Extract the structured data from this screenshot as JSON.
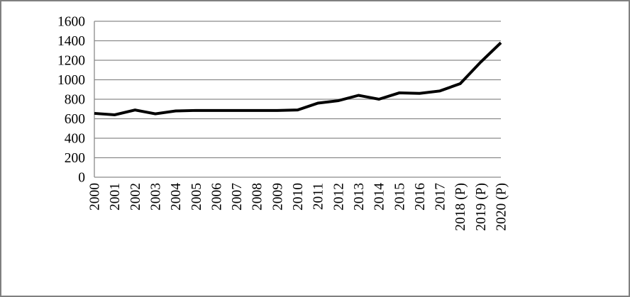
{
  "chart_data": {
    "type": "line",
    "title": "",
    "xlabel": "",
    "ylabel": "",
    "categories": [
      "2000",
      "2001",
      "2002",
      "2003",
      "2004",
      "2005",
      "2006",
      "2007",
      "2008",
      "2009",
      "2010",
      "2011",
      "2012",
      "2013",
      "2014",
      "2015",
      "2016",
      "2017",
      "2018 (P)",
      "2019 (P)",
      "2020 (P)"
    ],
    "series": [
      {
        "name": "value",
        "values": [
          655,
          640,
          690,
          650,
          680,
          685,
          685,
          685,
          685,
          685,
          690,
          760,
          785,
          840,
          800,
          865,
          860,
          885,
          960,
          1180,
          1380
        ]
      }
    ],
    "ylim": [
      0,
      1600
    ],
    "ytick_step": 200,
    "y_tick_labels": [
      "0",
      "200",
      "400",
      "600",
      "800",
      "1000",
      "1200",
      "1400",
      "1600"
    ],
    "grid": true,
    "legend_position": "none",
    "x_label_rotation_deg": -90,
    "colors": {
      "line": "#000000",
      "grid": "#8a8a8a",
      "axis": "#8a8a8a",
      "frame": "#808080",
      "background": "#ffffff",
      "tick_text": "#000000"
    }
  }
}
